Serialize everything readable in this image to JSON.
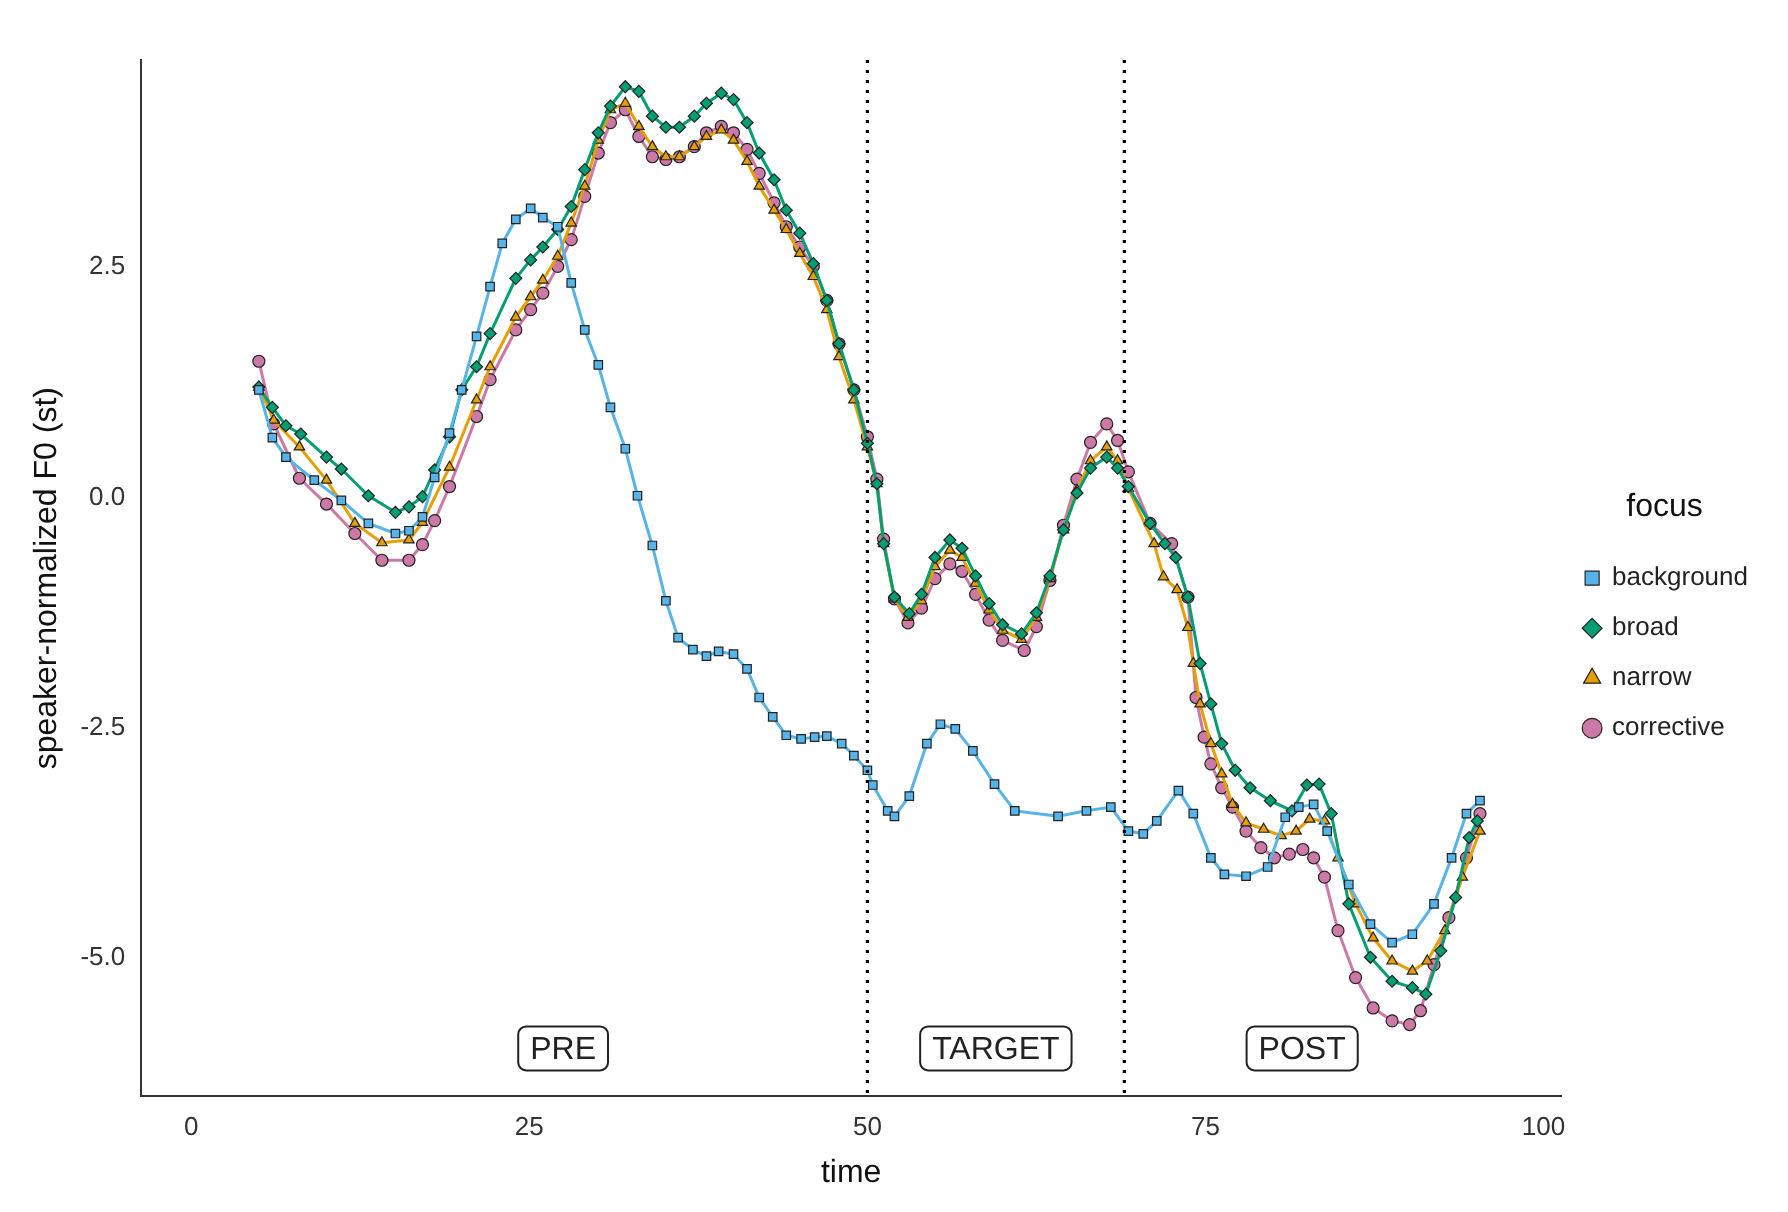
{
  "chart_data": {
    "type": "line",
    "xlabel": "time",
    "ylabel": "speaker-normalized F0 (st)",
    "legend_title": "focus",
    "legend": "right",
    "xlim": [
      -3.7,
      101.3
    ],
    "xticks": [
      0,
      25,
      50,
      75,
      100
    ],
    "ylim": [
      -6.5,
      4.75
    ],
    "yticks": [
      {
        "value": -5,
        "label": "-5.0"
      },
      {
        "value": -2.5,
        "label": "-2.5"
      },
      {
        "value": 0,
        "label": "0.0"
      },
      {
        "value": 2.5,
        "label": "2.5"
      }
    ],
    "ref_lines": [
      {
        "axis": "x",
        "value": 50,
        "line_style": "dotted",
        "color": "#000000"
      },
      {
        "axis": "x",
        "value": 69,
        "line_style": "dotted",
        "color": "#000000"
      }
    ],
    "annotations": [
      "PRE",
      "TARGET",
      "POST"
    ],
    "series": [
      {
        "name": "background",
        "color": "#56b4e9",
        "marker": "square",
        "x": [
          5,
          6,
          7,
          9.1,
          11.1,
          13.1,
          15.1,
          16.1,
          17.1,
          18,
          19.1,
          20,
          21.1,
          22.1,
          23,
          24,
          25.1,
          26,
          27.1,
          28.1,
          29.1,
          30.1,
          31,
          32.1,
          33,
          34.1,
          35.1,
          36,
          37.1,
          38.1,
          39,
          40.1,
          41.1,
          42,
          43,
          44,
          45.1,
          46.1,
          47,
          48.1,
          49,
          50,
          50.4,
          51.5,
          52,
          53.1,
          54.4,
          55.4,
          56.5,
          57.8,
          59.4,
          60.9,
          64.1,
          66.2,
          68,
          69.3,
          70.4,
          71.4,
          73,
          74.1,
          75.4,
          76.4,
          78,
          79.6,
          80.9,
          81.9,
          83,
          84,
          85.6,
          87.2,
          88.8,
          90.3,
          91.9,
          93.2,
          94.3,
          95.3
        ],
        "values": [
          1.17,
          0.65,
          0.44,
          0.19,
          -0.03,
          -0.28,
          -0.39,
          -0.36,
          -0.21,
          0.22,
          0.7,
          1.17,
          1.75,
          2.29,
          2.76,
          3.02,
          3.14,
          3.04,
          2.94,
          2.33,
          1.82,
          1.44,
          0.98,
          0.53,
          0.02,
          -0.52,
          -1.12,
          -1.52,
          -1.65,
          -1.72,
          -1.67,
          -1.7,
          -1.86,
          -2.17,
          -2.38,
          -2.58,
          -2.62,
          -2.6,
          -2.59,
          -2.67,
          -2.8,
          -2.96,
          -3.12,
          -3.4,
          -3.46,
          -3.24,
          -2.67,
          -2.46,
          -2.51,
          -2.75,
          -3.11,
          -3.4,
          -3.46,
          -3.4,
          -3.36,
          -3.62,
          -3.65,
          -3.51,
          -3.18,
          -3.43,
          -3.91,
          -4.09,
          -4.11,
          -4.01,
          -3.47,
          -3.36,
          -3.33,
          -3.62,
          -4.2,
          -4.63,
          -4.83,
          -4.74,
          -4.41,
          -3.91,
          -3.43,
          -3.29
        ]
      },
      {
        "name": "broad",
        "color": "#009e73",
        "marker": "diamond",
        "x": [
          5,
          6,
          7,
          8.1,
          10,
          11.1,
          13.1,
          15.1,
          16.1,
          17.1,
          18,
          19.1,
          20,
          21.1,
          22.1,
          24,
          25.1,
          26,
          27.1,
          28.1,
          29.1,
          30.1,
          31,
          32.1,
          33.1,
          34.1,
          35.1,
          36.1,
          37.2,
          38.1,
          39.2,
          40.1,
          41.1,
          42,
          43.1,
          44,
          45,
          46,
          47,
          47.9,
          49,
          50,
          50.7,
          51.2,
          52,
          53.1,
          54,
          55,
          56.1,
          57,
          58,
          59,
          60,
          61.4,
          62.5,
          63.5,
          64.5,
          65.5,
          66.5,
          67.7,
          68.5,
          69.3,
          70.9,
          72,
          72.8,
          73.7,
          74.6,
          75.4,
          76.2,
          77.2,
          78.3,
          79.8,
          81.4,
          82.5,
          83.4,
          84.3,
          85.6,
          87.2,
          88.8,
          90.3,
          91.3,
          92.4,
          93.5,
          94.5,
          95.1
        ],
        "values": [
          1.2,
          0.98,
          0.78,
          0.69,
          0.44,
          0.31,
          0.02,
          -0.16,
          -0.1,
          0.01,
          0.3,
          0.66,
          1.17,
          1.42,
          1.78,
          2.38,
          2.58,
          2.72,
          2.91,
          3.16,
          3.56,
          3.96,
          4.25,
          4.46,
          4.41,
          4.14,
          4.02,
          4.02,
          4.14,
          4.28,
          4.39,
          4.32,
          4.07,
          3.74,
          3.45,
          3.12,
          2.87,
          2.54,
          2.14,
          1.67,
          1.17,
          0.59,
          0.15,
          -0.5,
          -1.08,
          -1.26,
          -1.05,
          -0.65,
          -0.46,
          -0.55,
          -0.85,
          -1.15,
          -1.38,
          -1.48,
          -1.25,
          -0.85,
          -0.35,
          0.05,
          0.32,
          0.44,
          0.32,
          0.12,
          -0.28,
          -0.5,
          -0.65,
          -1.08,
          -1.8,
          -2.24,
          -2.67,
          -2.96,
          -3.15,
          -3.29,
          -3.4,
          -3.12,
          -3.11,
          -3.43,
          -4.41,
          -4.99,
          -5.25,
          -5.32,
          -5.39,
          -4.92,
          -4.34,
          -3.69,
          -3.51
        ]
      },
      {
        "name": "narrow",
        "color": "#e69f00",
        "marker": "triangle",
        "x": [
          5,
          6.1,
          8,
          10,
          12.1,
          14.1,
          16.1,
          17.1,
          19.1,
          21.1,
          22.1,
          24,
          25.1,
          26,
          27.1,
          28.1,
          29.1,
          30.1,
          31,
          32.1,
          33.1,
          34.1,
          35.1,
          36.1,
          37.2,
          38.1,
          39.2,
          40.1,
          41.1,
          42,
          43.1,
          44,
          45,
          46,
          47,
          47.9,
          49,
          50,
          50.7,
          51.2,
          52,
          53,
          54,
          55,
          56.1,
          57,
          58,
          59,
          60,
          61.4,
          62.5,
          63.5,
          64.5,
          65.5,
          66.5,
          67.7,
          68.5,
          69.3,
          71.2,
          71.9,
          72.9,
          73.7,
          74.1,
          74.6,
          75.4,
          76.2,
          77,
          78,
          79.3,
          80.6,
          81.7,
          82.7,
          83.8,
          84.8,
          86.1,
          87.4,
          88.8,
          90.3,
          91.4,
          92.7,
          94,
          95.3
        ],
        "values": [
          1.2,
          0.84,
          0.55,
          0.19,
          -0.28,
          -0.49,
          -0.46,
          -0.27,
          0.33,
          1.06,
          1.42,
          1.96,
          2.18,
          2.36,
          2.62,
          2.98,
          3.38,
          3.88,
          4.21,
          4.28,
          4.03,
          3.81,
          3.7,
          3.7,
          3.81,
          3.92,
          3.99,
          3.88,
          3.65,
          3.38,
          3.12,
          2.91,
          2.65,
          2.4,
          2.04,
          1.53,
          1.06,
          0.55,
          0.15,
          -0.5,
          -1.1,
          -1.3,
          -1.12,
          -0.75,
          -0.57,
          -0.65,
          -0.93,
          -1.22,
          -1.44,
          -1.54,
          -1.3,
          -0.88,
          -0.35,
          0.08,
          0.4,
          0.55,
          0.4,
          0.1,
          -0.5,
          -0.86,
          -1,
          -1.41,
          -1.8,
          -2.24,
          -2.67,
          -3,
          -3.33,
          -3.53,
          -3.6,
          -3.67,
          -3.62,
          -3.49,
          -3.51,
          -3.91,
          -4.41,
          -4.78,
          -5.03,
          -5.14,
          -5.03,
          -4.7,
          -4.12,
          -3.62
        ]
      },
      {
        "name": "corrective",
        "color": "#cc79a7",
        "marker": "circle",
        "x": [
          5,
          6.1,
          8,
          10,
          12.1,
          14.1,
          16.1,
          17.1,
          18,
          19.1,
          21.1,
          22.1,
          24,
          25.1,
          26,
          27.1,
          28.1,
          29.1,
          30.1,
          31,
          32.1,
          33.1,
          34.1,
          35.1,
          36.1,
          37.2,
          38.1,
          39.2,
          40.1,
          41.1,
          42,
          43.1,
          44,
          45,
          46,
          47,
          47.9,
          49,
          50,
          50.7,
          51.2,
          52,
          53,
          54,
          55,
          56.1,
          57,
          58,
          59,
          60,
          61.6,
          62.5,
          63.5,
          64.5,
          65.5,
          66.5,
          67.7,
          68.5,
          69.3,
          70.9,
          72.5,
          73.7,
          74.3,
          74.9,
          75.4,
          76.2,
          77,
          78,
          79.1,
          80.1,
          81.2,
          82.2,
          83,
          83.8,
          84.8,
          86.1,
          87.4,
          88.8,
          90.1,
          90.9,
          91.9,
          93,
          94.3,
          95.3
        ],
        "values": [
          1.48,
          0.8,
          0.21,
          -0.07,
          -0.39,
          -0.68,
          -0.68,
          -0.51,
          -0.25,
          0.12,
          0.88,
          1.28,
          1.82,
          2.04,
          2.22,
          2.51,
          2.8,
          3.27,
          3.74,
          4.07,
          4.21,
          3.92,
          3.7,
          3.67,
          3.7,
          3.81,
          3.96,
          4.03,
          3.96,
          3.78,
          3.52,
          3.2,
          2.94,
          2.72,
          2.51,
          2.14,
          1.67,
          1.17,
          0.66,
          0.2,
          -0.45,
          -1.1,
          -1.36,
          -1.2,
          -0.88,
          -0.72,
          -0.8,
          -1.05,
          -1.33,
          -1.55,
          -1.66,
          -1.4,
          -0.9,
          -0.3,
          0.2,
          0.6,
          0.8,
          0.62,
          0.28,
          -0.28,
          -0.5,
          -1.08,
          -2.17,
          -2.6,
          -2.89,
          -3.15,
          -3.36,
          -3.62,
          -3.8,
          -3.91,
          -3.87,
          -3.82,
          -3.91,
          -4.12,
          -4.7,
          -5.21,
          -5.54,
          -5.68,
          -5.72,
          -5.57,
          -5.07,
          -4.56,
          -3.91,
          -3.43
        ]
      }
    ]
  }
}
